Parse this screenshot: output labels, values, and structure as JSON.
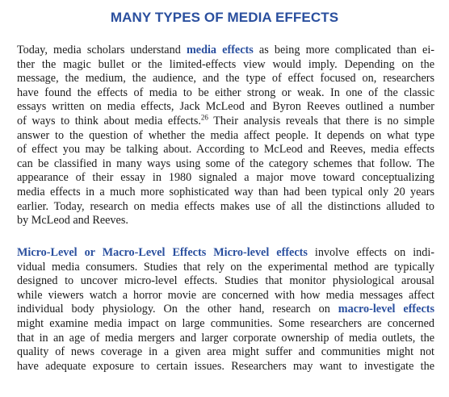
{
  "heading": "MANY TYPES OF MEDIA EFFECTS",
  "paragraph1": {
    "lines": [
      [
        "Today, media scholars understand ",
        "media effects",
        " as being more complicated than ei-"
      ],
      [
        "ther the magic bullet or the limited-effects view would imply. Depending on the"
      ],
      [
        "message, the medium, the audience, and the type of effect focused on, researchers"
      ],
      [
        "have found the effects of media to be either strong or weak. In one of the classic"
      ],
      [
        "essays written on media effects, Jack McLeod and Byron Reeves outlined a number"
      ],
      [
        "of ways to think about media effects.",
        "26",
        " Their analysis reveals that there is no simple"
      ],
      [
        "answer to the question of whether the media affect people. It depends on what type"
      ],
      [
        "of effect you may be talking about. According to McLeod and Reeves, media effects"
      ],
      [
        "can be classified in many ways using some of the category schemes that follow. The"
      ],
      [
        "appearance of their essay in 1980 signaled a major move toward conceptualizing"
      ],
      [
        "media effects in a much more sophisticated way than had been typical only 20 years"
      ],
      [
        "earlier. Today, research on media effects makes use of all the distinctions alluded to"
      ],
      [
        "by McLeod and Reeves."
      ]
    ]
  },
  "paragraph2": {
    "lines": [
      [
        "",
        "Micro-Level or Macro-Level Effects",
        " ",
        "Micro-level effects",
        " involve effects on indi-"
      ],
      [
        "vidual media consumers. Studies that rely on the experimental method are typically"
      ],
      [
        "designed to uncover micro-level effects. Studies that monitor physiological arousal"
      ],
      [
        "while viewers watch a horror movie are concerned with how media messages affect"
      ],
      [
        "individual body physiology. On the other hand, research on ",
        "macro-level effects"
      ],
      [
        "might examine media impact on large communities. Some researchers are concerned"
      ],
      [
        "that in an age of media mergers and larger corporate ownership of media outlets, the"
      ],
      [
        "quality of news coverage in a given area might suffer and communities might not"
      ],
      [
        "have adequate exposure to certain issues. Researchers may want to investigate the"
      ]
    ]
  }
}
